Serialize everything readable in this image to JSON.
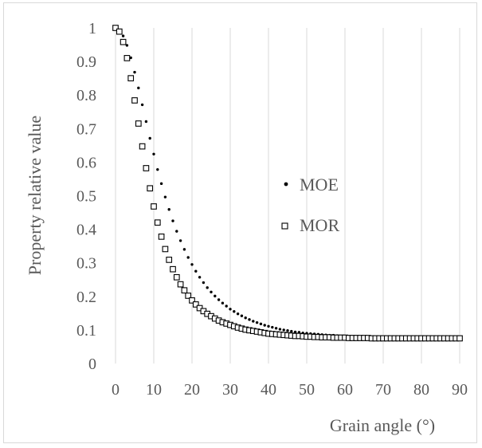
{
  "chart_data": {
    "type": "scatter",
    "title": "",
    "xlabel": "Grain angle (°)",
    "ylabel": "Property relative value",
    "xlim": [
      0,
      90
    ],
    "ylim": [
      0,
      1
    ],
    "x_ticks": [
      "0",
      "10",
      "20",
      "30",
      "40",
      "50",
      "60",
      "70",
      "80",
      "90"
    ],
    "y_ticks": [
      "0",
      "0.1",
      "0.2",
      "0.3",
      "0.4",
      "0.5",
      "0.6",
      "0.7",
      "0.8",
      "0.9",
      "1"
    ],
    "grid": "vertical-major",
    "legend_position": "center-right",
    "x": [
      0,
      1,
      2,
      3,
      4,
      5,
      6,
      7,
      8,
      9,
      10,
      11,
      12,
      13,
      14,
      15,
      16,
      17,
      18,
      19,
      20,
      21,
      22,
      23,
      24,
      25,
      26,
      27,
      28,
      29,
      30,
      31,
      32,
      33,
      34,
      35,
      36,
      37,
      38,
      39,
      40,
      41,
      42,
      43,
      44,
      45,
      46,
      47,
      48,
      49,
      50,
      51,
      52,
      53,
      54,
      55,
      56,
      57,
      58,
      59,
      60,
      61,
      62,
      63,
      64,
      65,
      66,
      67,
      68,
      69,
      70,
      71,
      72,
      73,
      74,
      75,
      76,
      77,
      78,
      79,
      80,
      81,
      82,
      83,
      84,
      85,
      86,
      87,
      88,
      89,
      90
    ],
    "series": [
      {
        "name": "MOE",
        "marker": "dot",
        "values": [
          1.0,
          0.994,
          0.976,
          0.948,
          0.911,
          0.868,
          0.821,
          0.771,
          0.721,
          0.671,
          0.624,
          0.578,
          0.536,
          0.496,
          0.459,
          0.425,
          0.394,
          0.366,
          0.34,
          0.316,
          0.295,
          0.275,
          0.257,
          0.241,
          0.226,
          0.213,
          0.201,
          0.19,
          0.18,
          0.171,
          0.162,
          0.155,
          0.148,
          0.142,
          0.136,
          0.131,
          0.126,
          0.122,
          0.118,
          0.114,
          0.111,
          0.108,
          0.105,
          0.102,
          0.1,
          0.098,
          0.096,
          0.094,
          0.093,
          0.091,
          0.09,
          0.089,
          0.088,
          0.087,
          0.086,
          0.085,
          0.084,
          0.084,
          0.083,
          0.082,
          0.082,
          0.081,
          0.081,
          0.081,
          0.08,
          0.08,
          0.08,
          0.079,
          0.079,
          0.079,
          0.079,
          0.078,
          0.078,
          0.078,
          0.078,
          0.078,
          0.078,
          0.078,
          0.077,
          0.077,
          0.077,
          0.077,
          0.077,
          0.077,
          0.077,
          0.077,
          0.077,
          0.077,
          0.077,
          0.077,
          0.077
        ]
      },
      {
        "name": "MOR",
        "marker": "open-square",
        "values": [
          1.0,
          0.989,
          0.958,
          0.91,
          0.85,
          0.784,
          0.715,
          0.647,
          0.582,
          0.522,
          0.468,
          0.42,
          0.378,
          0.341,
          0.309,
          0.281,
          0.257,
          0.236,
          0.218,
          0.202,
          0.188,
          0.176,
          0.165,
          0.156,
          0.148,
          0.141,
          0.134,
          0.128,
          0.123,
          0.119,
          0.115,
          0.111,
          0.107,
          0.104,
          0.101,
          0.099,
          0.097,
          0.095,
          0.093,
          0.091,
          0.089,
          0.088,
          0.087,
          0.086,
          0.085,
          0.084,
          0.083,
          0.082,
          0.082,
          0.081,
          0.08,
          0.08,
          0.079,
          0.079,
          0.078,
          0.078,
          0.078,
          0.077,
          0.077,
          0.077,
          0.077,
          0.076,
          0.076,
          0.076,
          0.076,
          0.076,
          0.076,
          0.075,
          0.075,
          0.075,
          0.075,
          0.075,
          0.075,
          0.075,
          0.075,
          0.075,
          0.075,
          0.075,
          0.075,
          0.075,
          0.075,
          0.075,
          0.075,
          0.075,
          0.075,
          0.075,
          0.075,
          0.075,
          0.075,
          0.075,
          0.075
        ]
      }
    ]
  },
  "colors": {
    "marker": "#000000",
    "text": "#595959",
    "grid": "#d9d9d9"
  }
}
